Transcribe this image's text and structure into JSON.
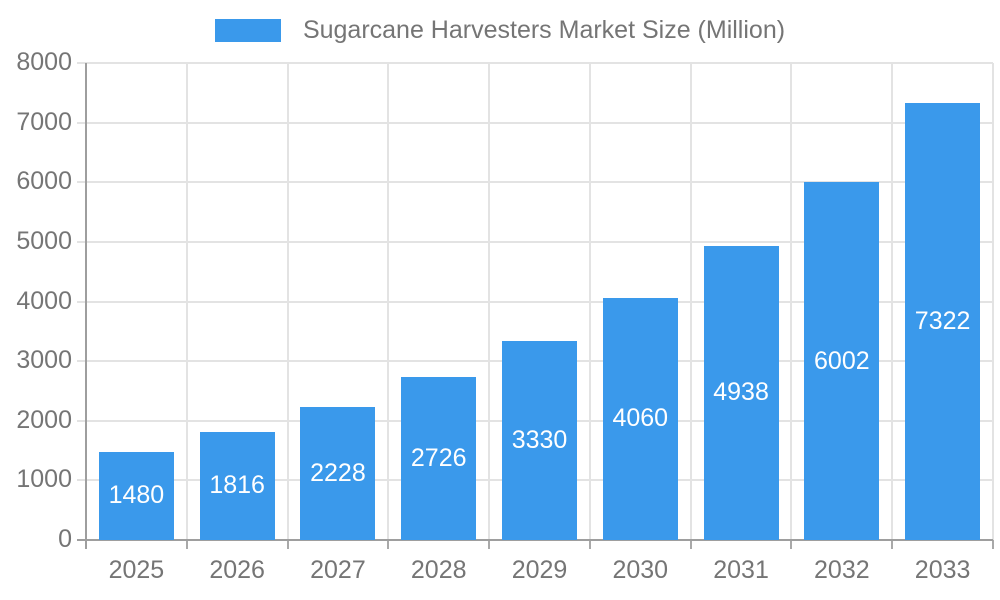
{
  "legend": {
    "label": "Sugarcane Harvesters Market Size (Million)"
  },
  "colors": {
    "bar": "#3A99EB",
    "gridline": "#E3E3E3",
    "axis_line": "#9E9E9E",
    "tick_mark": "#A9A9A9",
    "tick_text": "#757575",
    "value_label_text": "#FFFFFF",
    "background": "#FFFFFF"
  },
  "chart_data": {
    "type": "bar",
    "title": "Sugarcane Harvesters Market Size (Million)",
    "series_name": "Sugarcane Harvesters Market Size (Million)",
    "categories": [
      "2025",
      "2026",
      "2027",
      "2028",
      "2029",
      "2030",
      "2031",
      "2032",
      "2033"
    ],
    "values": [
      1480,
      1816,
      2228,
      2726,
      3330,
      4060,
      4938,
      6002,
      7322
    ],
    "xlabel": "",
    "ylabel": "",
    "ylim": [
      0,
      8000
    ],
    "ytick_interval": 1000,
    "yticks": [
      0,
      1000,
      2000,
      3000,
      4000,
      5000,
      6000,
      7000,
      8000
    ],
    "grid": true,
    "legend_position": "top-center",
    "value_labels": "inside-center"
  }
}
